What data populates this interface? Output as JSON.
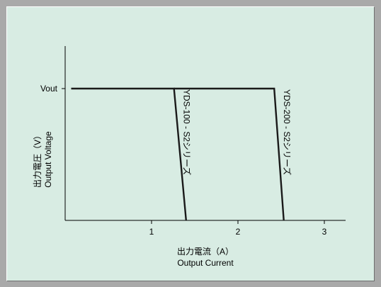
{
  "chart_data": {
    "type": "line",
    "xlabel": "出力電流（A）",
    "xlabel_en": "Output Current",
    "ylabel": "出力電圧（V）",
    "ylabel_en": "Output Voltage",
    "x_ticks": [
      1,
      2,
      3
    ],
    "y_ticks": [
      "Vout"
    ],
    "xlim": [
      0,
      3.25
    ],
    "ylim": [
      0,
      1.55
    ],
    "grid": false,
    "legend": "none",
    "series": [
      {
        "label": "YDS-100 - S2シリーズ",
        "points": [
          [
            0.07,
            1.0
          ],
          [
            1.26,
            1.0
          ],
          [
            1.4,
            0.0
          ]
        ]
      },
      {
        "label": "YDS-200 - S2シリーズ",
        "points": [
          [
            1.26,
            1.0
          ],
          [
            2.42,
            1.0
          ],
          [
            2.53,
            0.0
          ]
        ]
      }
    ],
    "colors": {
      "line": "#1a1a1a",
      "axis": "#000000",
      "background": "#d8ece3"
    }
  }
}
